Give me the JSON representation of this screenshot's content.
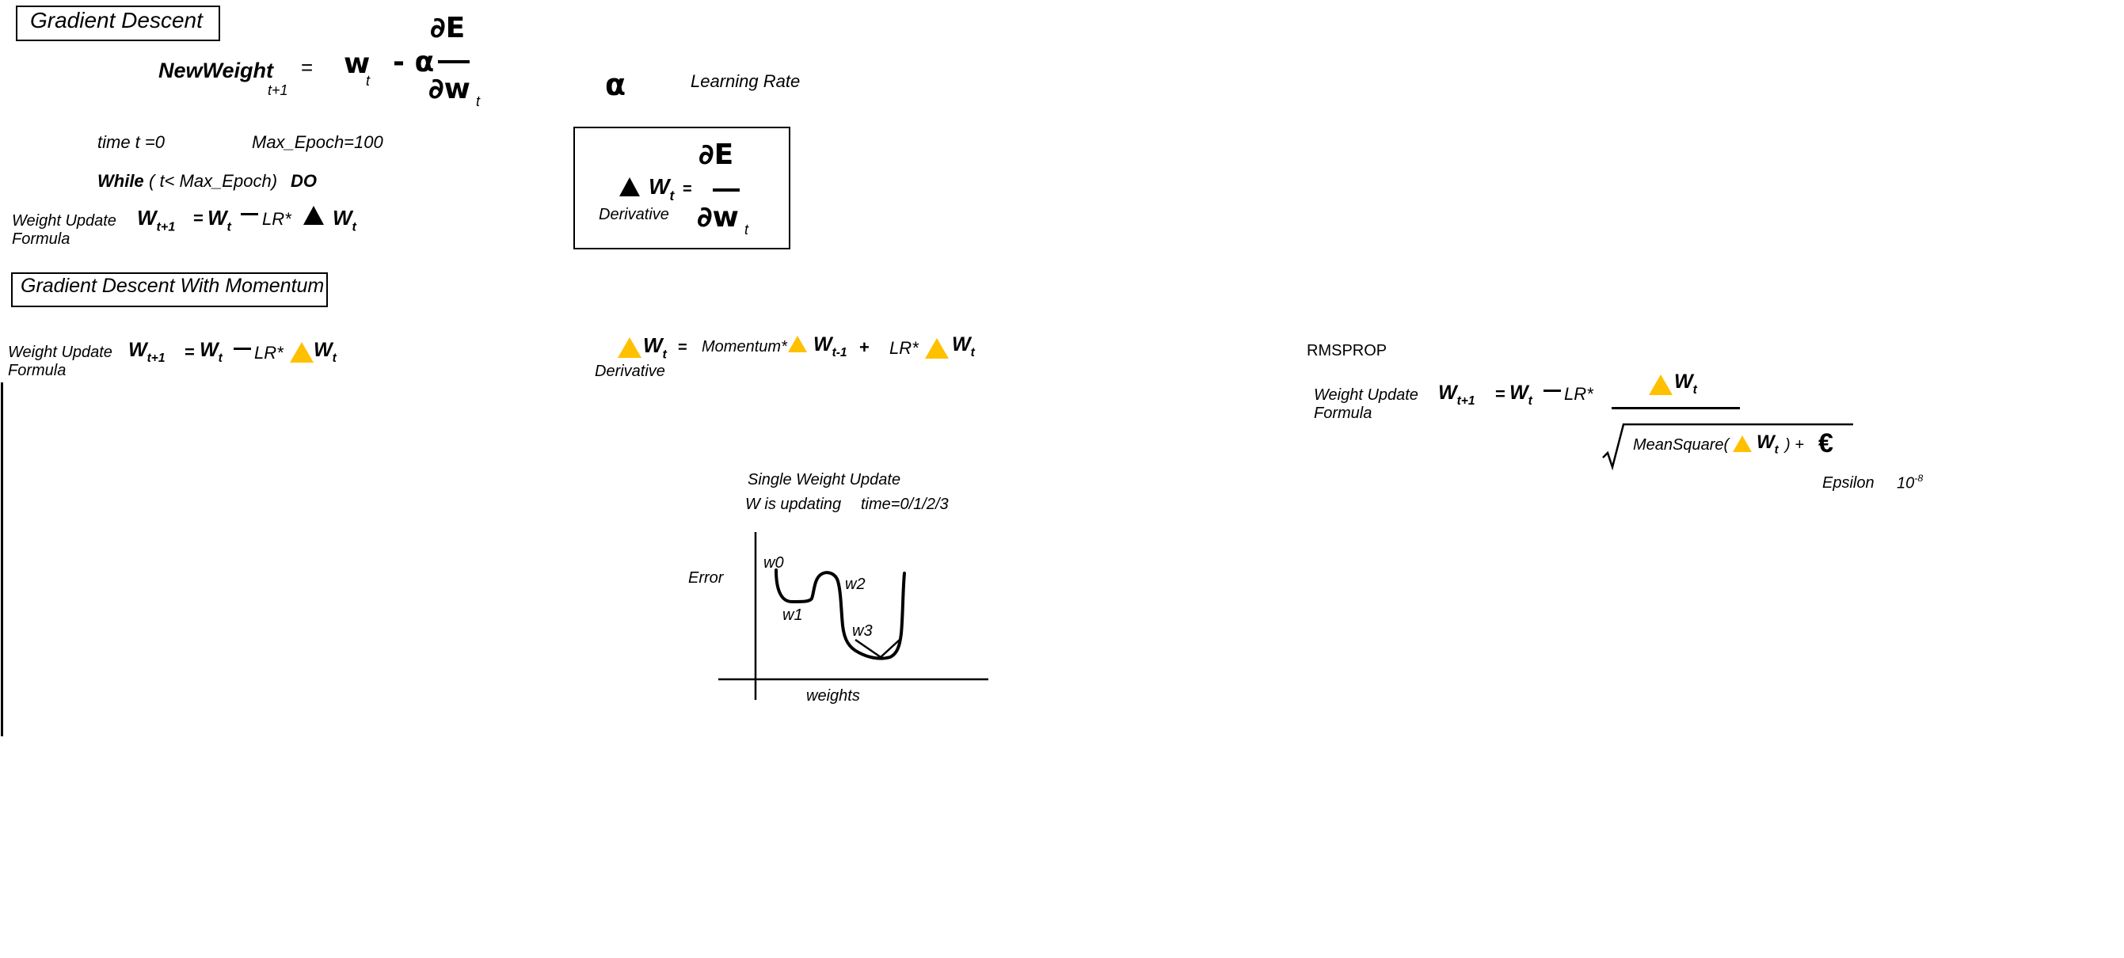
{
  "gd": {
    "title": "Gradient Descent",
    "newweight": "NewWeight",
    "t_plus_1": "t+1",
    "eq": "=",
    "w": "w",
    "t": "t",
    "minus_alpha": "- α",
    "dE": "∂E",
    "dw": "∂w",
    "alpha": "α",
    "learning_rate": "Learning Rate",
    "time_init": "time t =0",
    "max_epoch": "Max_Epoch=100",
    "while_kw": "While",
    "while_cond": "( t< Max_Epoch)",
    "do_kw": "DO",
    "update_label_1": "Weight Update",
    "update_label_2": "Formula",
    "W": "W",
    "sub_t1": "t+1",
    "lr": "LR*",
    "deriv_label": "Derivative"
  },
  "momentum": {
    "title": "Gradient Descent With Momentum",
    "update_label_1": "Weight Update",
    "update_label_2": "Formula",
    "W": "W",
    "sub_t1": "t+1",
    "sub_t": "t",
    "sub_tm1": "t-1",
    "eq": "=",
    "lr": "LR*",
    "momentum": "Momentum*",
    "plus": "+",
    "deriv_label": "Derivative"
  },
  "graph": {
    "title": "Single Weight Update",
    "subtitle_a": "W is updating",
    "subtitle_b": "time=0/1/2/3",
    "ylabel": "Error",
    "xlabel": "weights",
    "points": [
      "w0",
      "w1",
      "w2",
      "w3"
    ]
  },
  "rmsprop": {
    "title": "RMSPROP",
    "update_label_1": "Weight Update",
    "update_label_2": "Formula",
    "W": "W",
    "sub_t1": "t+1",
    "sub_t": "t",
    "eq": "=",
    "lr": "LR*",
    "meansquare": "MeanSquare(",
    "close_plus": ")   +",
    "epsilon_sym": "€",
    "epsilon_label": "Epsilon",
    "epsilon_val": "10",
    "epsilon_exp": "-8"
  },
  "colors": {
    "accent_triangle": "#ffc000",
    "ink": "#000000",
    "background": "#ffffff"
  },
  "icons": {
    "delta": "delta-triangle-icon",
    "sqrt": "square-root-icon"
  }
}
